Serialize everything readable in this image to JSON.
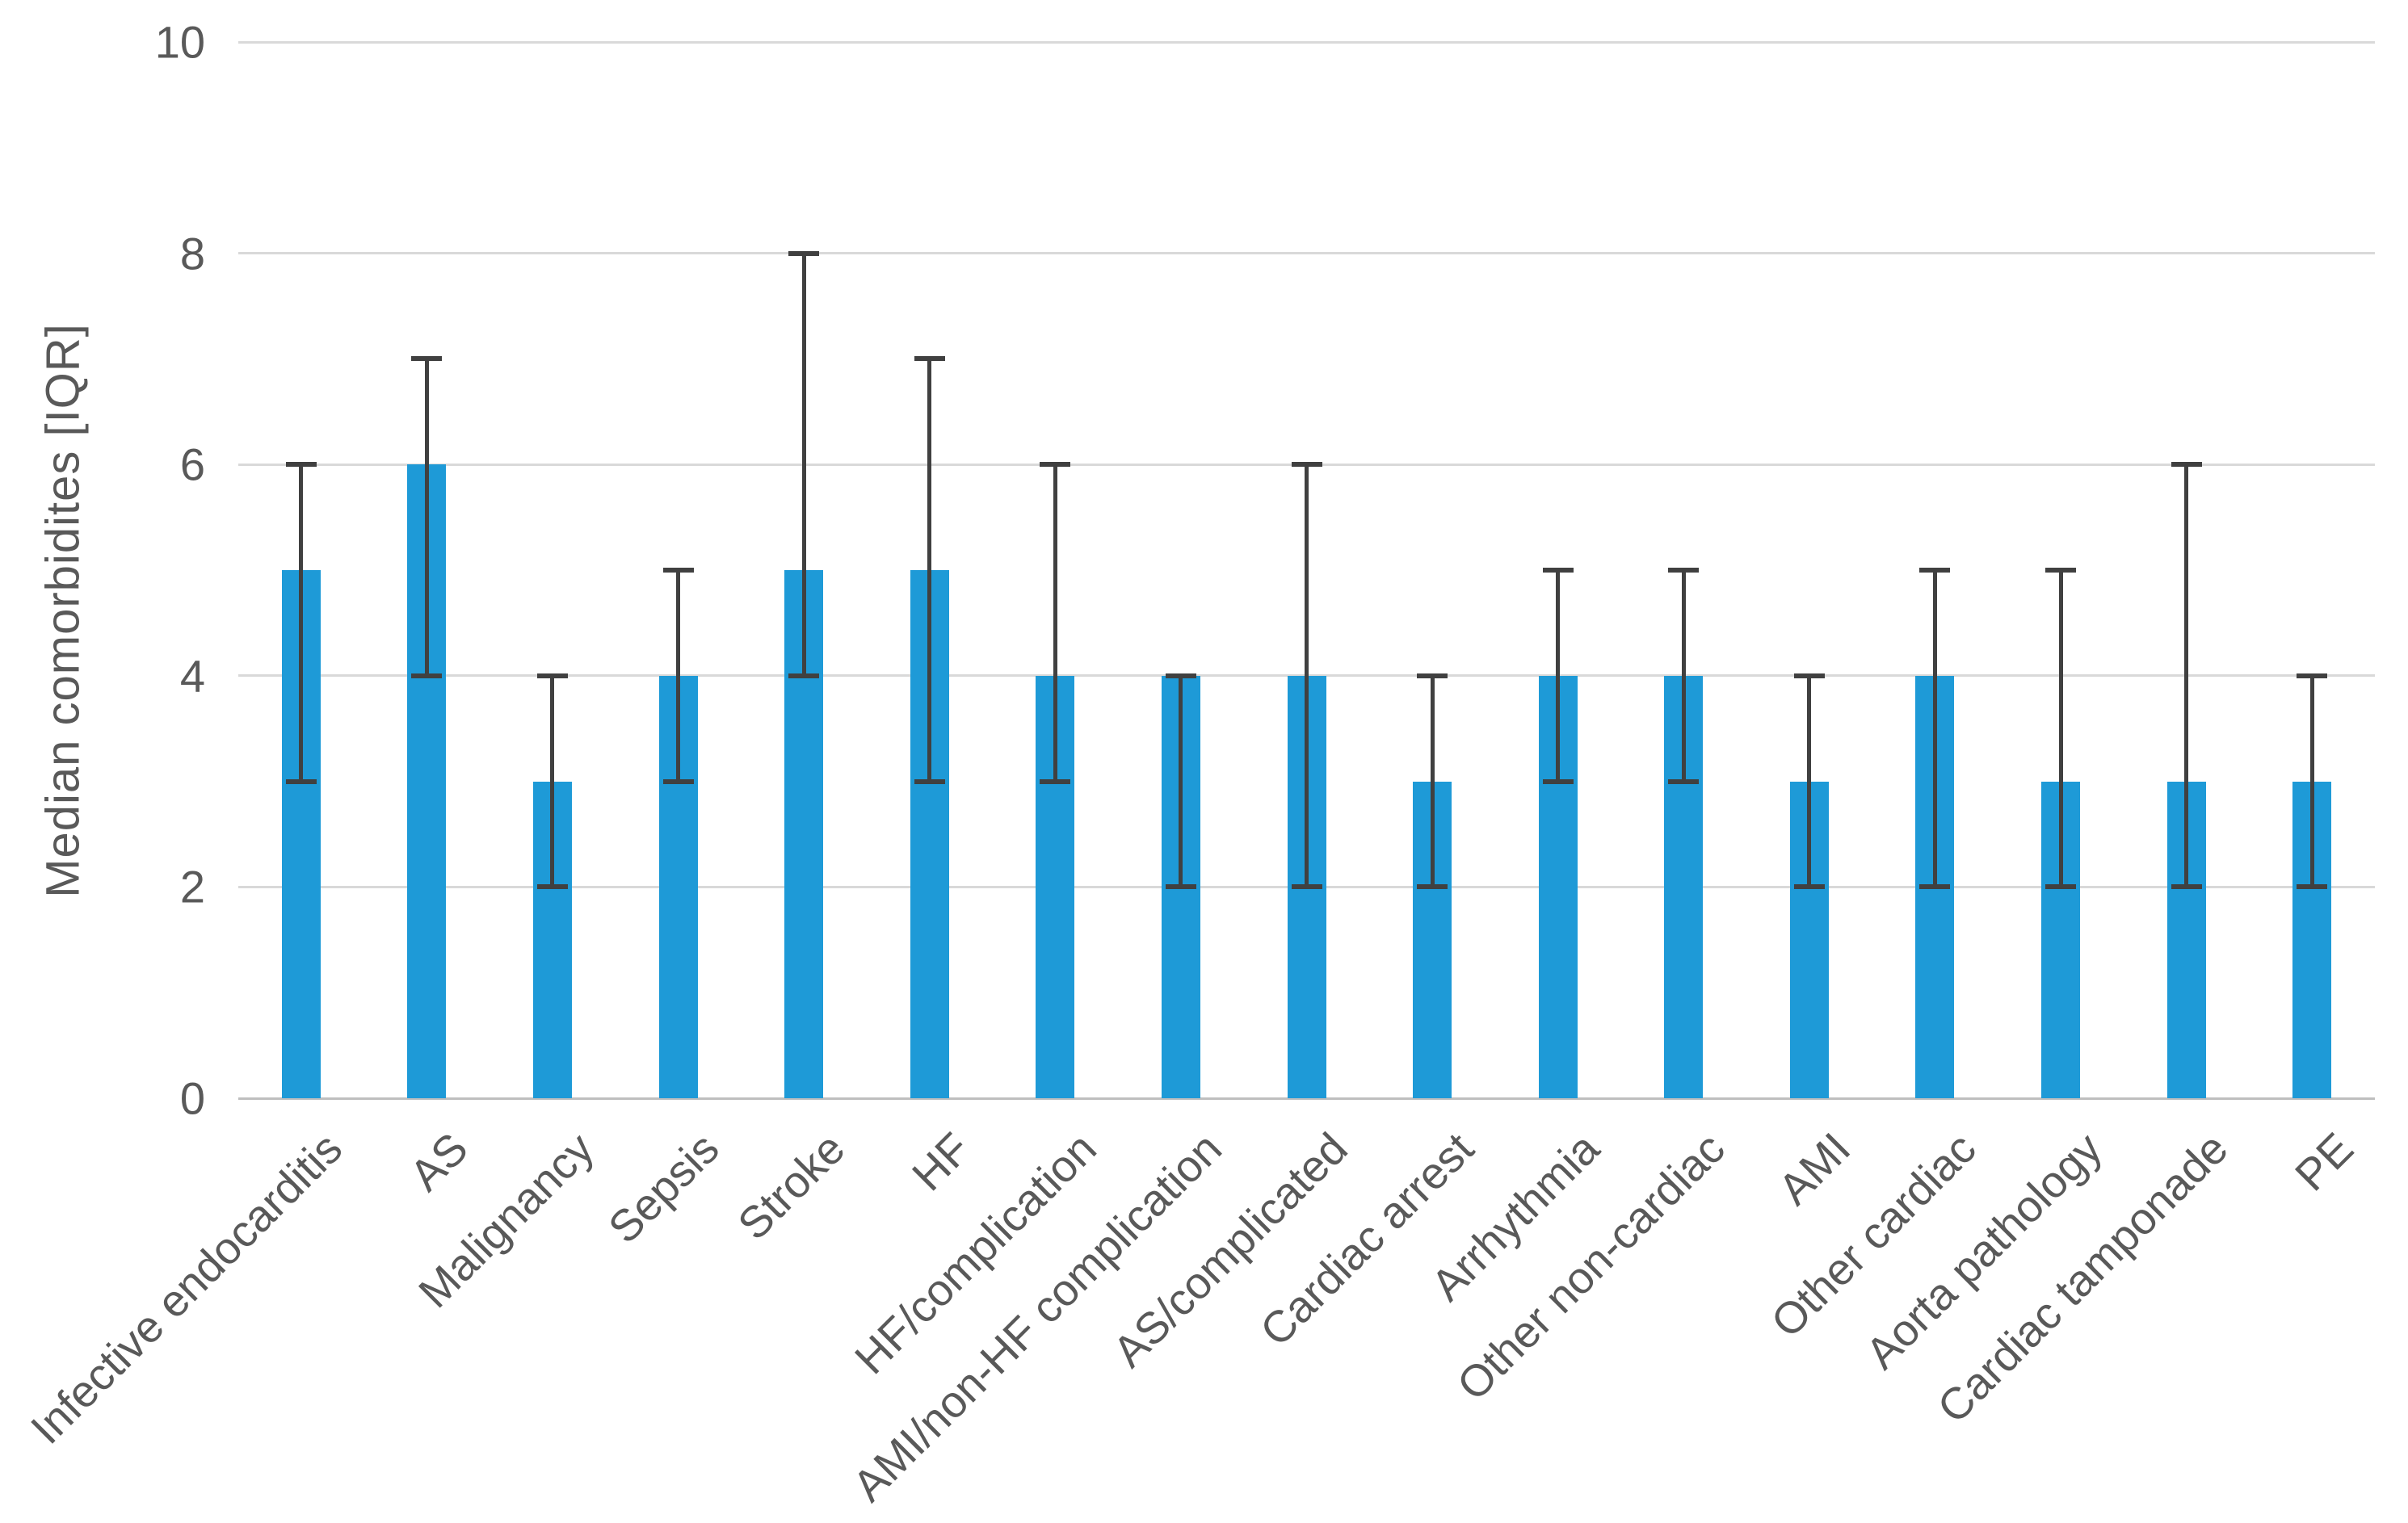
{
  "chart_data": {
    "type": "bar",
    "title": "",
    "xlabel": "",
    "ylabel": "Median comorbidites [IQR]",
    "ylim": [
      0,
      10
    ],
    "yticks": [
      0,
      2,
      4,
      6,
      8,
      10
    ],
    "grid": true,
    "legend": "none",
    "error_bars": "IQR whiskers, absolute low/high values",
    "categories": [
      "Infective endocarditis",
      "AS",
      "Malignancy",
      "Sepsis",
      "Stroke",
      "HF",
      "HF/complication",
      "AMI/non-HF complication",
      "AS/complicated",
      "Cardiac arrest",
      "Arrhythmia",
      "Other non-cardiac",
      "AMI",
      "Other cardiac",
      "Aorta pathology",
      "Cardiac tamponade",
      "PE"
    ],
    "series": [
      {
        "name": "Median comorbidities",
        "values": [
          5,
          6,
          3,
          4,
          5,
          5,
          4,
          4,
          4,
          3,
          4,
          4,
          3,
          4,
          3,
          3,
          3
        ],
        "whisker_low": [
          3,
          4,
          2,
          3,
          4,
          3,
          3,
          2,
          2,
          2,
          3,
          3,
          2,
          2,
          2,
          2,
          2
        ],
        "whisker_high": [
          6,
          7,
          4,
          5,
          8,
          7,
          6,
          4,
          6,
          4,
          5,
          5,
          4,
          5,
          5,
          6,
          4
        ]
      }
    ]
  },
  "colors": {
    "bar": "#1E9AD7",
    "error_bar": "#404040",
    "text": "#595959",
    "gridline": "#D9D9D9",
    "axis_line": "#BFBFBF",
    "background": "#FFFFFF"
  }
}
